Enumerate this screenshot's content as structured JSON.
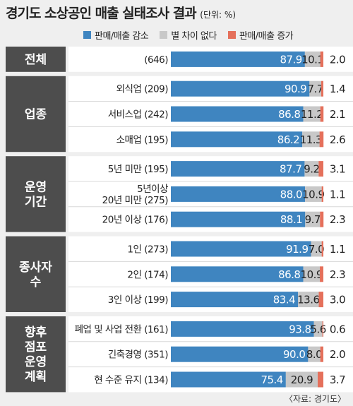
{
  "title": "경기도 소상공인 매출 실태조사 결과",
  "unit": "(단위: %)",
  "source": "〈자료: 경기도〉",
  "chart_data": {
    "type": "bar",
    "stacked": true,
    "orientation": "horizontal",
    "xlim": [
      0,
      100
    ],
    "legend_position": "top",
    "series": [
      {
        "name": "판매/매출 감소",
        "color": "#3f85c0"
      },
      {
        "name": "별 차이 없다",
        "color": "#c8c8c8"
      },
      {
        "name": "판매/매출 증가",
        "color": "#e5705b"
      }
    ],
    "groups": [
      {
        "label": [
          "전체"
        ],
        "rows": [
          {
            "label": [
              "(646)"
            ],
            "values": [
              87.9,
              10.1,
              2.0
            ]
          }
        ]
      },
      {
        "label": [
          "업종"
        ],
        "rows": [
          {
            "label": [
              "외식업 (209)"
            ],
            "values": [
              90.9,
              7.7,
              1.4
            ]
          },
          {
            "label": [
              "서비스업 (242)"
            ],
            "values": [
              86.8,
              11.2,
              2.1
            ]
          },
          {
            "label": [
              "소매업 (195)"
            ],
            "values": [
              86.2,
              11.3,
              2.6
            ]
          }
        ]
      },
      {
        "label": [
          "운영",
          "기간"
        ],
        "rows": [
          {
            "label": [
              "5년 미만 (195)"
            ],
            "values": [
              87.7,
              9.2,
              3.1
            ]
          },
          {
            "label": [
              "5년이상",
              "20년 미만 (275)"
            ],
            "values": [
              88.0,
              10.9,
              1.1
            ]
          },
          {
            "label": [
              "20년 이상 (176)"
            ],
            "values": [
              88.1,
              9.7,
              2.3
            ]
          }
        ]
      },
      {
        "label": [
          "종사자",
          "수"
        ],
        "rows": [
          {
            "label": [
              "1인 (273)"
            ],
            "values": [
              91.9,
              7.0,
              1.1
            ]
          },
          {
            "label": [
              "2인 (174)"
            ],
            "values": [
              86.8,
              10.9,
              2.3
            ]
          },
          {
            "label": [
              "3인 이상 (199)"
            ],
            "values": [
              83.4,
              13.6,
              3.0
            ]
          }
        ]
      },
      {
        "label": [
          "향후",
          "점포",
          "운영",
          "계획"
        ],
        "rows": [
          {
            "label": [
              "폐업 및 사업 전환 (161)"
            ],
            "values": [
              93.8,
              5.6,
              0.6
            ]
          },
          {
            "label": [
              "긴축경영 (351)"
            ],
            "values": [
              90.0,
              8.0,
              2.0
            ]
          },
          {
            "label": [
              "현 수준 유지 (134)"
            ],
            "values": [
              75.4,
              20.9,
              3.7
            ]
          }
        ]
      }
    ]
  }
}
